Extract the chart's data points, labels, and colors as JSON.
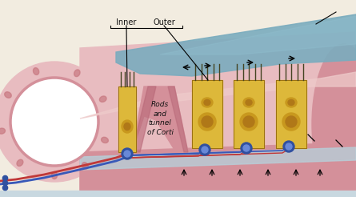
{
  "bg_color": "#f2ece0",
  "pink_tissue": "#d4909a",
  "pink_light": "#e8bcc0",
  "pink_pale": "#eecaca",
  "pink_outer_wall": "#c87880",
  "blue_tectorial": "#7aacbe",
  "blue_tectorial2": "#90bece",
  "yellow_cell": "#ddb83a",
  "yellow_light": "#e8cc60",
  "yellow_pale": "#f0dc88",
  "red_nerve": "#c03838",
  "blue_nerve": "#3858b8",
  "blue_ganglion": "#3050a0",
  "dark_pink": "#b86878",
  "text_black": "#111111",
  "label_inner": "Inner",
  "label_outer": "Outer",
  "label_rods": "Rods\nand\ntunnel\nof Corti",
  "white": "#ffffff",
  "cell_nucleus": "#c8981e",
  "cell_dark": "#b07818"
}
